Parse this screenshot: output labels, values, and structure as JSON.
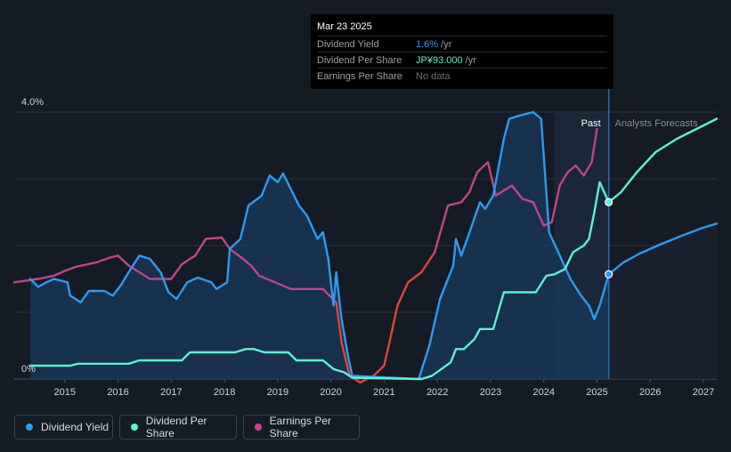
{
  "tooltip": {
    "date": "Mar 23 2025",
    "rows": [
      {
        "label": "Dividend Yield",
        "value": "1.6%",
        "unit": " /yr",
        "color": "#2e9af0"
      },
      {
        "label": "Dividend Per Share",
        "value": "JP¥93.000",
        "unit": " /yr",
        "color": "#5ff0d0"
      },
      {
        "label": "Earnings Per Share",
        "value": "No data",
        "unit": "",
        "color": "#6a7078"
      }
    ]
  },
  "legend": [
    {
      "label": "Dividend Yield",
      "color": "#2e9af0"
    },
    {
      "label": "Dividend Per Share",
      "color": "#5ff0d0"
    },
    {
      "label": "Earnings Per Share",
      "color": "#c0468a"
    }
  ],
  "chart_data": {
    "type": "line",
    "y_top_label": "4.0%",
    "y_bottom_label": "0%",
    "ylim": [
      0,
      4.0
    ],
    "xlim": [
      2014.05,
      2027.25
    ],
    "x_ticks": [
      "2015",
      "2016",
      "2017",
      "2018",
      "2019",
      "2020",
      "2021",
      "2022",
      "2023",
      "2024",
      "2025",
      "2026",
      "2027"
    ],
    "past_label": "Past",
    "forecast_label": "Analysts Forecasts",
    "forecast_start": 2025.22,
    "highlight_start": 2024.2,
    "colors": {
      "yield": "#2e9af0",
      "dps": "#5ff0d0",
      "eps": "#c0468a",
      "eps_neg": "#e0443a",
      "yield_fill": "#1a3a5a"
    },
    "series": [
      {
        "key": "yield",
        "points": [
          [
            2014.35,
            1.5
          ],
          [
            2014.5,
            1.38
          ],
          [
            2014.65,
            1.45
          ],
          [
            2014.8,
            1.5
          ],
          [
            2015.05,
            1.45
          ],
          [
            2015.1,
            1.25
          ],
          [
            2015.3,
            1.15
          ],
          [
            2015.45,
            1.32
          ],
          [
            2015.75,
            1.32
          ],
          [
            2015.9,
            1.25
          ],
          [
            2016.05,
            1.4
          ],
          [
            2016.2,
            1.6
          ],
          [
            2016.4,
            1.85
          ],
          [
            2016.6,
            1.8
          ],
          [
            2016.8,
            1.6
          ],
          [
            2016.95,
            1.3
          ],
          [
            2017.1,
            1.2
          ],
          [
            2017.3,
            1.45
          ],
          [
            2017.5,
            1.52
          ],
          [
            2017.75,
            1.45
          ],
          [
            2017.85,
            1.35
          ],
          [
            2018.05,
            1.45
          ],
          [
            2018.1,
            1.95
          ],
          [
            2018.3,
            2.1
          ],
          [
            2018.45,
            2.6
          ],
          [
            2018.7,
            2.75
          ],
          [
            2018.85,
            3.05
          ],
          [
            2019.0,
            2.95
          ],
          [
            2019.1,
            3.08
          ],
          [
            2019.4,
            2.6
          ],
          [
            2019.55,
            2.45
          ],
          [
            2019.75,
            2.1
          ],
          [
            2019.85,
            2.2
          ],
          [
            2019.95,
            1.8
          ],
          [
            2020.05,
            1.1
          ],
          [
            2020.1,
            1.6
          ],
          [
            2020.2,
            0.9
          ],
          [
            2020.32,
            0.35
          ],
          [
            2020.4,
            0.05
          ],
          [
            2021.65,
            0
          ],
          [
            2021.85,
            0.5
          ],
          [
            2022.05,
            1.2
          ],
          [
            2022.3,
            1.7
          ],
          [
            2022.35,
            2.1
          ],
          [
            2022.45,
            1.85
          ],
          [
            2022.65,
            2.3
          ],
          [
            2022.8,
            2.65
          ],
          [
            2022.9,
            2.55
          ],
          [
            2023.05,
            2.75
          ],
          [
            2023.25,
            3.6
          ],
          [
            2023.35,
            3.9
          ],
          [
            2023.55,
            3.95
          ],
          [
            2023.8,
            4.0
          ],
          [
            2023.95,
            3.9
          ],
          [
            2024.1,
            2.2
          ],
          [
            2024.3,
            1.85
          ],
          [
            2024.5,
            1.5
          ],
          [
            2024.7,
            1.25
          ],
          [
            2024.85,
            1.1
          ],
          [
            2024.95,
            0.9
          ],
          [
            2025.05,
            1.1
          ],
          [
            2025.22,
            1.57
          ]
        ]
      },
      {
        "key": "yield_forecast",
        "points": [
          [
            2025.22,
            1.57
          ],
          [
            2025.5,
            1.75
          ],
          [
            2025.8,
            1.88
          ],
          [
            2026.2,
            2.02
          ],
          [
            2026.6,
            2.15
          ],
          [
            2027.0,
            2.27
          ],
          [
            2027.25,
            2.33
          ]
        ]
      },
      {
        "key": "dps",
        "points": [
          [
            2014.35,
            0.2
          ],
          [
            2015.1,
            0.2
          ],
          [
            2015.25,
            0.23
          ],
          [
            2016.2,
            0.23
          ],
          [
            2016.4,
            0.28
          ],
          [
            2017.2,
            0.28
          ],
          [
            2017.35,
            0.4
          ],
          [
            2018.2,
            0.4
          ],
          [
            2018.4,
            0.45
          ],
          [
            2018.55,
            0.45
          ],
          [
            2018.75,
            0.4
          ],
          [
            2019.2,
            0.4
          ],
          [
            2019.35,
            0.28
          ],
          [
            2019.85,
            0.28
          ],
          [
            2020.05,
            0.15
          ],
          [
            2020.25,
            0.1
          ],
          [
            2020.4,
            0.02
          ],
          [
            2021.7,
            0
          ],
          [
            2021.9,
            0.05
          ],
          [
            2022.25,
            0.25
          ],
          [
            2022.35,
            0.45
          ],
          [
            2022.5,
            0.45
          ],
          [
            2022.7,
            0.6
          ],
          [
            2022.8,
            0.75
          ],
          [
            2023.05,
            0.75
          ],
          [
            2023.25,
            1.3
          ],
          [
            2023.85,
            1.3
          ],
          [
            2024.05,
            1.55
          ],
          [
            2024.2,
            1.57
          ],
          [
            2024.4,
            1.65
          ],
          [
            2024.55,
            1.9
          ],
          [
            2024.75,
            2.0
          ],
          [
            2024.85,
            2.1
          ],
          [
            2024.95,
            2.5
          ],
          [
            2025.05,
            2.95
          ],
          [
            2025.22,
            2.65
          ]
        ]
      },
      {
        "key": "dps_forecast",
        "points": [
          [
            2025.22,
            2.65
          ],
          [
            2025.45,
            2.8
          ],
          [
            2025.75,
            3.1
          ],
          [
            2026.1,
            3.4
          ],
          [
            2026.5,
            3.6
          ],
          [
            2027.0,
            3.8
          ],
          [
            2027.25,
            3.9
          ]
        ]
      },
      {
        "key": "eps",
        "points": [
          [
            2014.05,
            1.45
          ],
          [
            2014.5,
            1.5
          ],
          [
            2014.8,
            1.55
          ],
          [
            2015.0,
            1.62
          ],
          [
            2015.2,
            1.68
          ],
          [
            2015.6,
            1.75
          ],
          [
            2015.85,
            1.82
          ],
          [
            2016.0,
            1.85
          ],
          [
            2016.2,
            1.7
          ],
          [
            2016.4,
            1.6
          ],
          [
            2016.6,
            1.5
          ],
          [
            2016.8,
            1.5
          ],
          [
            2017.0,
            1.5
          ],
          [
            2017.2,
            1.72
          ],
          [
            2017.45,
            1.85
          ],
          [
            2017.65,
            2.1
          ],
          [
            2017.95,
            2.12
          ],
          [
            2018.1,
            1.95
          ],
          [
            2018.35,
            1.8
          ],
          [
            2018.5,
            1.7
          ],
          [
            2018.65,
            1.55
          ],
          [
            2018.95,
            1.45
          ],
          [
            2019.25,
            1.35
          ],
          [
            2019.5,
            1.35
          ],
          [
            2019.7,
            1.35
          ],
          [
            2019.85,
            1.35
          ],
          [
            2020.1,
            1.15
          ]
        ]
      },
      {
        "key": "eps_neg",
        "points": [
          [
            2020.1,
            1.15
          ],
          [
            2020.2,
            0.55
          ],
          [
            2020.35,
            0.05
          ],
          [
            2020.55,
            -0.05
          ],
          [
            2020.8,
            0.05
          ],
          [
            2021.0,
            0.2
          ],
          [
            2021.1,
            0.55
          ],
          [
            2021.25,
            1.1
          ],
          [
            2021.45,
            1.45
          ],
          [
            2021.7,
            1.6
          ],
          [
            2021.95,
            1.9
          ]
        ]
      },
      {
        "key": "eps2",
        "points": [
          [
            2021.95,
            1.9
          ],
          [
            2022.2,
            2.6
          ],
          [
            2022.45,
            2.65
          ],
          [
            2022.6,
            2.8
          ],
          [
            2022.75,
            3.1
          ],
          [
            2022.95,
            3.25
          ],
          [
            2023.1,
            2.75
          ],
          [
            2023.4,
            2.9
          ],
          [
            2023.6,
            2.7
          ],
          [
            2023.8,
            2.65
          ],
          [
            2024.0,
            2.3
          ],
          [
            2024.15,
            2.35
          ],
          [
            2024.3,
            2.9
          ],
          [
            2024.45,
            3.1
          ],
          [
            2024.6,
            3.2
          ],
          [
            2024.75,
            3.05
          ],
          [
            2024.9,
            3.25
          ],
          [
            2025.0,
            3.75
          ]
        ]
      }
    ],
    "markers": [
      {
        "series": "dps",
        "x": 2025.22,
        "y": 2.65
      },
      {
        "series": "yield",
        "x": 2025.22,
        "y": 1.57
      }
    ]
  }
}
